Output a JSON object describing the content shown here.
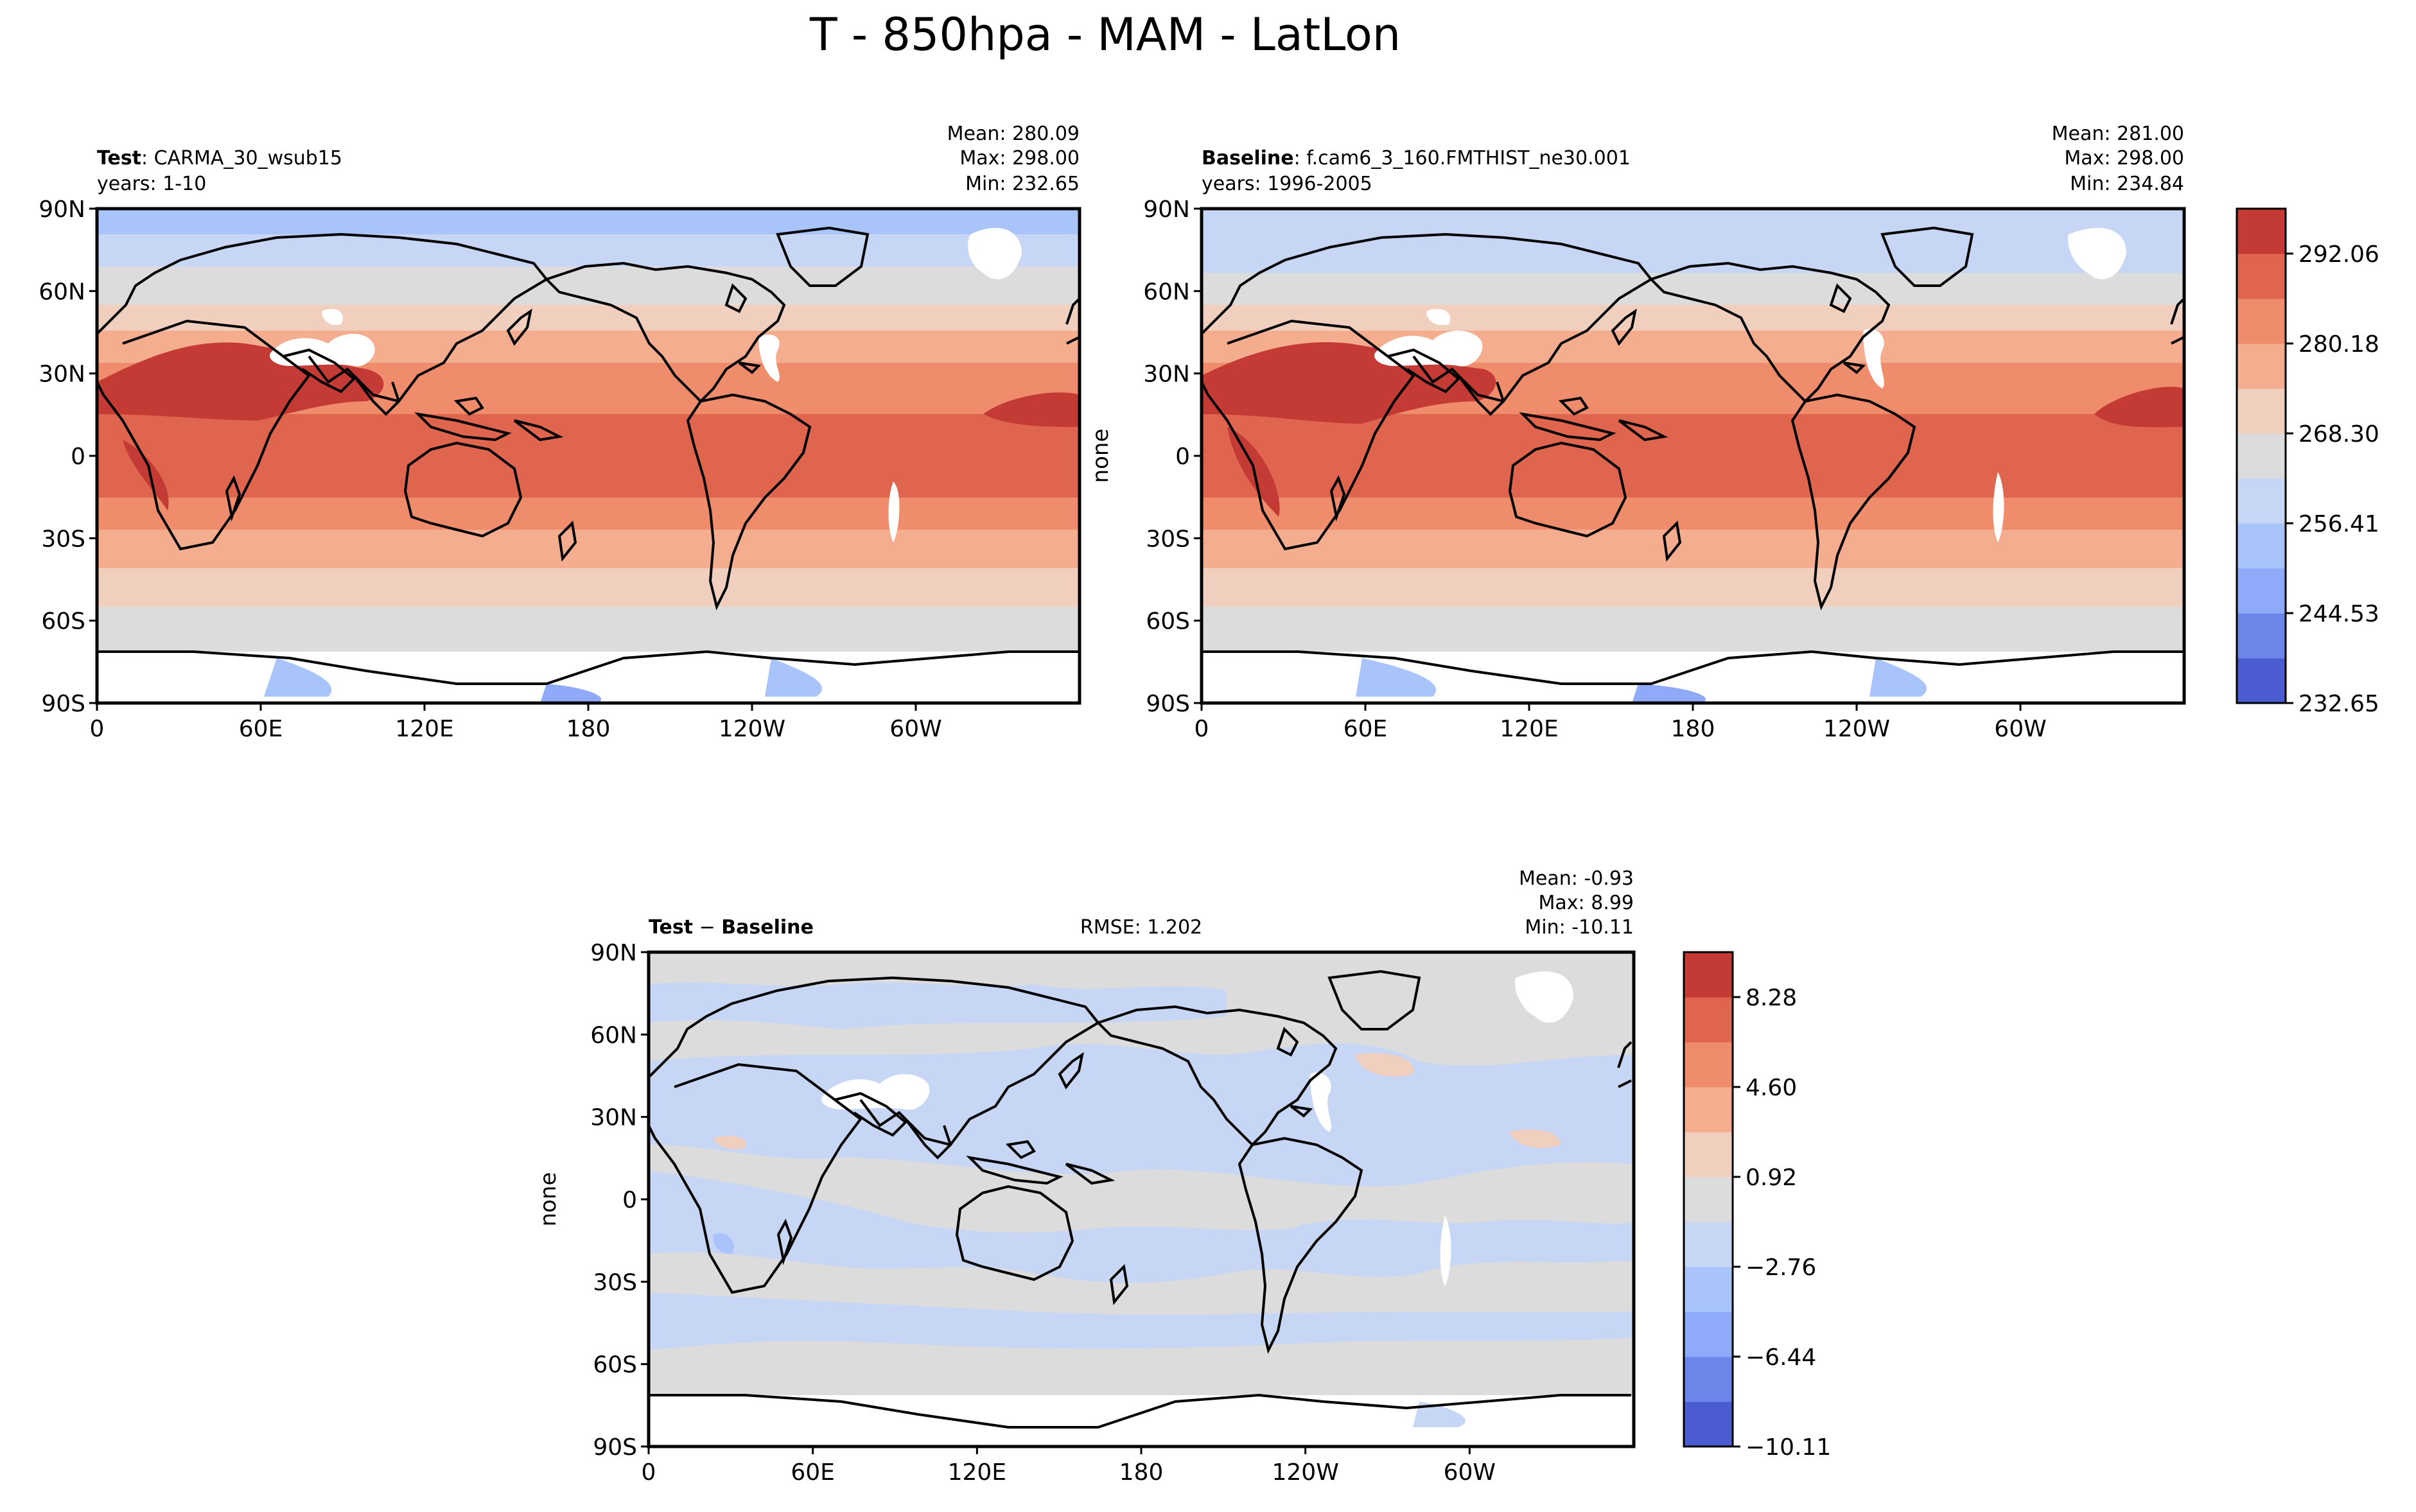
{
  "figure": {
    "title": "T - 850hpa - MAM - LatLon"
  },
  "axis_ticks": {
    "x": [
      "0",
      "60E",
      "120E",
      "180",
      "120W",
      "60W"
    ],
    "y": [
      "90N",
      "60N",
      "30N",
      "0",
      "30S",
      "60S",
      "90S"
    ]
  },
  "panels": {
    "test": {
      "label_bold": "Test",
      "label_rest": ": CARMA_30_wsub15",
      "years": "years: 1-10",
      "stats": {
        "mean": "Mean: 280.09",
        "max": "Max: 298.00",
        "min": "Min: 232.65"
      }
    },
    "baseline": {
      "label_bold": "Baseline",
      "label_rest": ": f.cam6_3_160.FMTHIST_ne30.001",
      "years": "years: 1996-2005",
      "ylabel": "none",
      "stats": {
        "mean": "Mean: 281.00",
        "max": "Max: 298.00",
        "min": "Min: 234.84"
      }
    },
    "diff": {
      "label_bold": "Test",
      "label_minus": " − ",
      "label_bold2": "Baseline",
      "rmse": "RMSE: 1.202",
      "ylabel": "none",
      "stats": {
        "mean": "Mean: -0.93",
        "max": "Max:  8.99",
        "min": "Min: -10.11"
      }
    }
  },
  "colorbars": {
    "main": {
      "colors": [
        "#4a5cd0",
        "#6b86e8",
        "#8eaaf8",
        "#a9c3fb",
        "#c6d6f4",
        "#dcdcdc",
        "#f1cfbe",
        "#f5ad8f",
        "#ef8c6c",
        "#e0654f",
        "#c43a35"
      ],
      "tick_labels": [
        "232.65",
        "244.53",
        "256.41",
        "268.30",
        "280.18",
        "292.06"
      ]
    },
    "diff": {
      "colors": [
        "#4a5cd0",
        "#6b86e8",
        "#8eaaf8",
        "#a9c3fb",
        "#c6d6f4",
        "#dcdcdc",
        "#f1cfbe",
        "#f5ad8f",
        "#ef8c6c",
        "#e0654f",
        "#c43a35"
      ],
      "tick_labels": [
        "−10.11",
        "−6.44",
        "−2.76",
        "0.92",
        "4.60",
        "8.28"
      ]
    }
  },
  "chart_data": [
    {
      "type": "heatmap",
      "title": "Test: CARMA_30_wsub15",
      "variable": "T 850hPa MAM",
      "x_range": [
        0,
        360
      ],
      "y_range": [
        -90,
        90
      ],
      "summary": {
        "mean": 280.09,
        "max": 298.0,
        "min": 232.65
      },
      "zonal_mean_by_latitude": {
        "lat": [
          90,
          75,
          60,
          45,
          30,
          15,
          0,
          -15,
          -30,
          -45,
          -60,
          -75
        ],
        "value": [
          250,
          256,
          264,
          272,
          281,
          290,
          291,
          290,
          283,
          276,
          268,
          246
        ]
      }
    },
    {
      "type": "heatmap",
      "title": "Baseline: f.cam6_3_160.FMTHIST_ne30.001",
      "variable": "T 850hPa MAM",
      "x_range": [
        0,
        360
      ],
      "y_range": [
        -90,
        90
      ],
      "summary": {
        "mean": 281.0,
        "max": 298.0,
        "min": 234.84
      },
      "zonal_mean_by_latitude": {
        "lat": [
          90,
          75,
          60,
          45,
          30,
          15,
          0,
          -15,
          -30,
          -45,
          -60,
          -75
        ],
        "value": [
          256,
          260,
          266,
          273,
          282,
          291,
          292,
          291,
          284,
          277,
          269,
          248
        ]
      }
    },
    {
      "type": "heatmap",
      "title": "Test − Baseline",
      "variable": "T 850hPa MAM difference",
      "x_range": [
        0,
        360
      ],
      "y_range": [
        -90,
        90
      ],
      "summary": {
        "mean": -0.93,
        "max": 8.99,
        "min": -10.11,
        "rmse": 1.202
      }
    }
  ]
}
